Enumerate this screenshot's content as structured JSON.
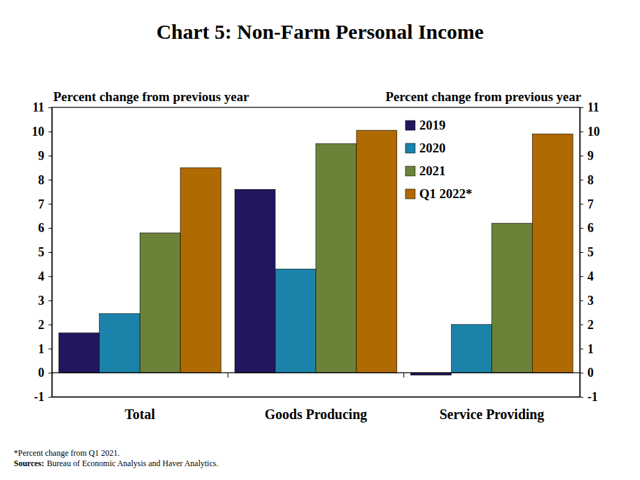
{
  "chart_data": {
    "type": "bar",
    "title": "Chart 5: Non-Farm Personal Income",
    "y_label": "Percent change from previous year",
    "y2_label": "Percent change from previous year",
    "categories": [
      "Total",
      "Goods Producing",
      "Service Providing"
    ],
    "series": [
      {
        "name": "2019",
        "color": "#21175e",
        "values": [
          1.65,
          7.6,
          -0.1
        ]
      },
      {
        "name": "2020",
        "color": "#1b82aa",
        "values": [
          2.45,
          4.3,
          2.0
        ]
      },
      {
        "name": "2021",
        "color": "#6b8239",
        "values": [
          5.8,
          9.5,
          6.2
        ]
      },
      {
        "name": "Q1 2022*",
        "color": "#b06a02",
        "values": [
          8.5,
          10.05,
          9.9
        ]
      }
    ],
    "ylim": [
      -1,
      11
    ],
    "yticks": [
      -1,
      0,
      1,
      2,
      3,
      4,
      5,
      6,
      7,
      8,
      9,
      10,
      11
    ],
    "y2lim": [
      -1,
      11
    ],
    "y2ticks": [
      -1,
      0,
      1,
      2,
      3,
      4,
      5,
      6,
      7,
      8,
      9,
      10,
      11
    ],
    "legend": "top right",
    "grid": false,
    "footnote": "*Percent change from Q1 2021.",
    "source_label": "Sources:",
    "source_text": "Bureau of Economic Analysis and Haver Analytics."
  }
}
